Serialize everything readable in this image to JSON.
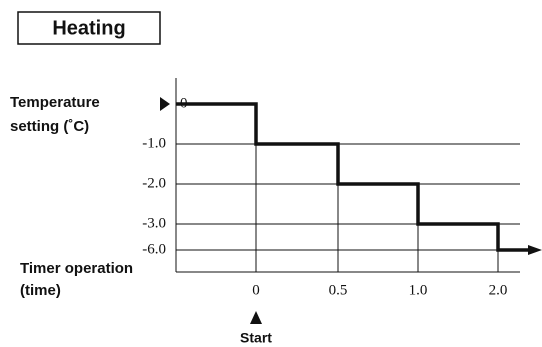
{
  "title": "Heating",
  "y_axis": {
    "label_line1": "Temperature",
    "label_line2": "setting (˚C)",
    "ticks": [
      "0",
      "-1.0",
      "-2.0",
      "-3.0",
      "-6.0"
    ]
  },
  "x_axis": {
    "label_line1": "Timer operation",
    "label_line2": "(time)",
    "ticks": [
      "0",
      "0.5",
      "1.0",
      "2.0"
    ]
  },
  "marker": "Start"
}
